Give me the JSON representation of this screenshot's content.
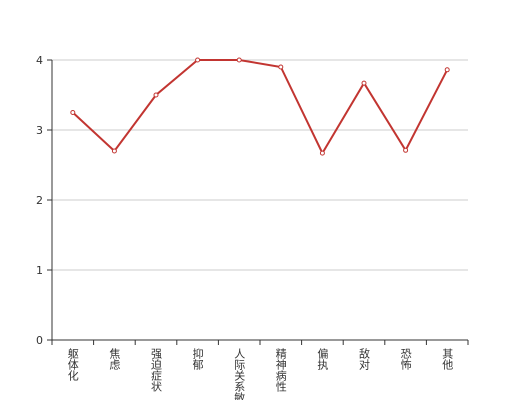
{
  "chart_data": {
    "type": "line",
    "categories": [
      "躯体化",
      "焦虑",
      "强迫症状",
      "抑郁",
      "人际关系敏感",
      "精神病性",
      "偏执",
      "敌对",
      "恐怖",
      "其他"
    ],
    "series": [
      {
        "color": "#c23531",
        "values": [
          3.25,
          2.7,
          3.5,
          4.0,
          4.0,
          3.9,
          2.67,
          3.67,
          2.71,
          3.86
        ]
      }
    ],
    "ylim": [
      0,
      4
    ],
    "yticks": [
      0,
      1,
      2,
      3,
      4
    ],
    "grid": true
  }
}
